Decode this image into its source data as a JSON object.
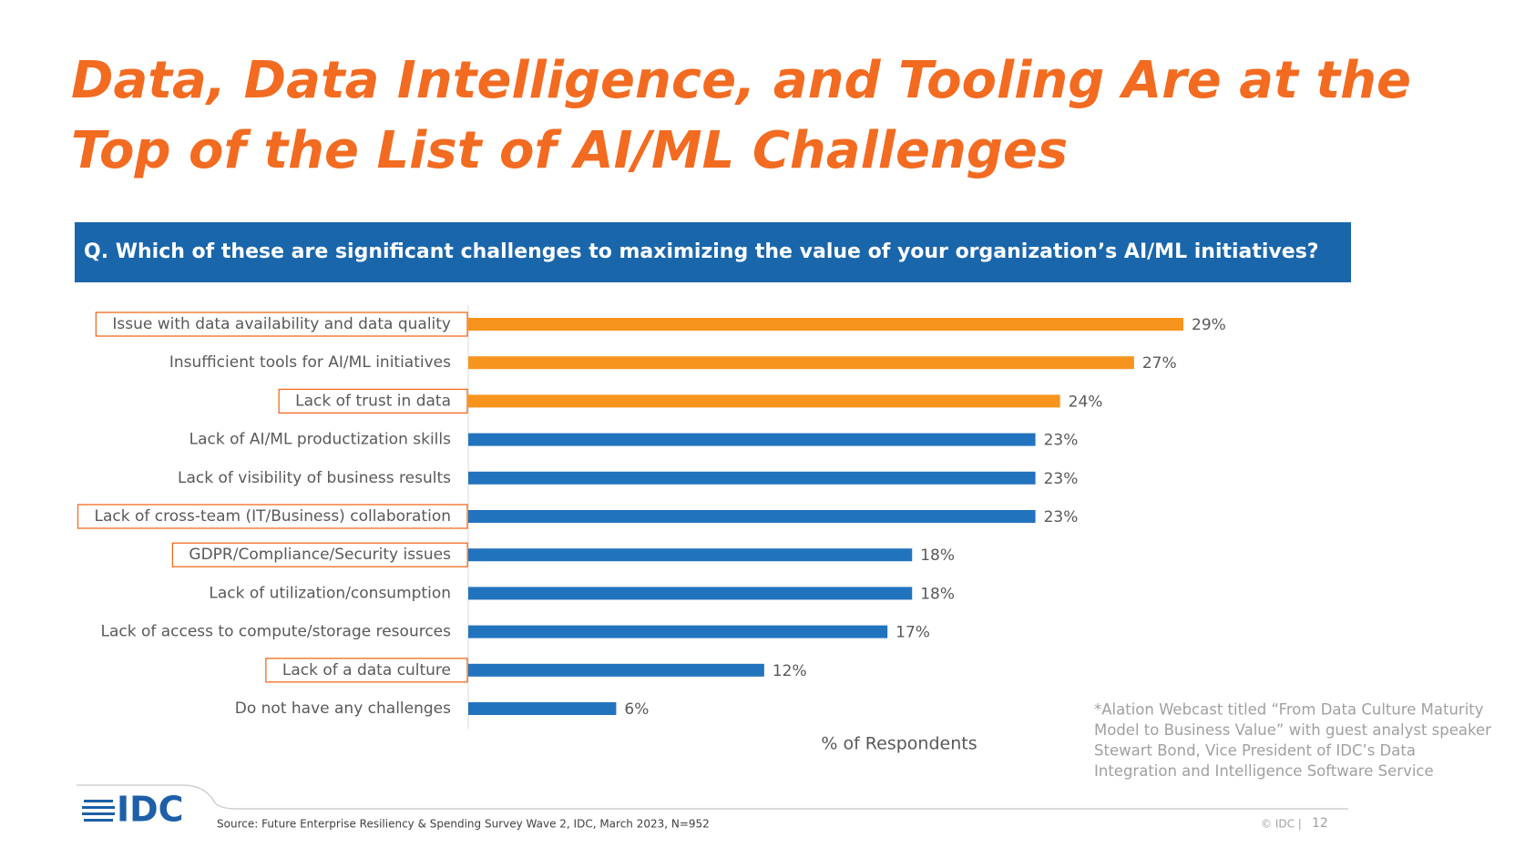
{
  "chart_data": {
    "type": "bar",
    "orientation": "horizontal",
    "title_lines": [
      "Data, Data Intelligence, and Tooling Are at the",
      "Top of the List of AI/ML Challenges"
    ],
    "subtitle": "Q. Which of these are significant challenges to maximizing the value of your organization’s AI/ML initiatives?",
    "xlabel": "% of Respondents",
    "categories": [
      "Issue with data availability and data quality",
      "Insufficient tools for AI/ML initiatives",
      "Lack of trust in data",
      "Lack of AI/ML productization  skills",
      "Lack of visibility of business results",
      "Lack of cross-team (IT/Business) collaboration",
      "GDPR/Compliance/Security issues",
      "Lack of utilization/consumption",
      "Lack of access to compute/storage resources",
      "Lack of a data culture",
      "Do not have any challenges"
    ],
    "values": [
      29,
      27,
      24,
      23,
      23,
      23,
      18,
      18,
      17,
      12,
      6
    ],
    "value_labels": [
      "29%",
      "27%",
      "24%",
      "23%",
      "23%",
      "23%",
      "18%",
      "18%",
      "17%",
      "12%",
      "6%"
    ],
    "colors": [
      "#f7941d",
      "#f7941d",
      "#f7941d",
      "#2273bd",
      "#2273bd",
      "#2273bd",
      "#2273bd",
      "#2273bd",
      "#2273bd",
      "#2273bd",
      "#2273bd"
    ],
    "highlighted": [
      true,
      false,
      true,
      false,
      false,
      true,
      true,
      false,
      false,
      true,
      false
    ]
  },
  "footnote_lines": [
    "*Alation Webcast titled “From Data Culture Maturity",
    "Model to Business Value” with guest analyst speaker",
    "Stewart Bond, Vice President of IDC’s Data",
    "Integration and Intelligence Software Service"
  ],
  "footer": {
    "logo": "IDC",
    "source": "Source: Future Enterprise Resiliency & Spending Survey Wave 2, IDC, March 2023, N=952",
    "copyright": "© IDC |",
    "page_number": 12
  }
}
